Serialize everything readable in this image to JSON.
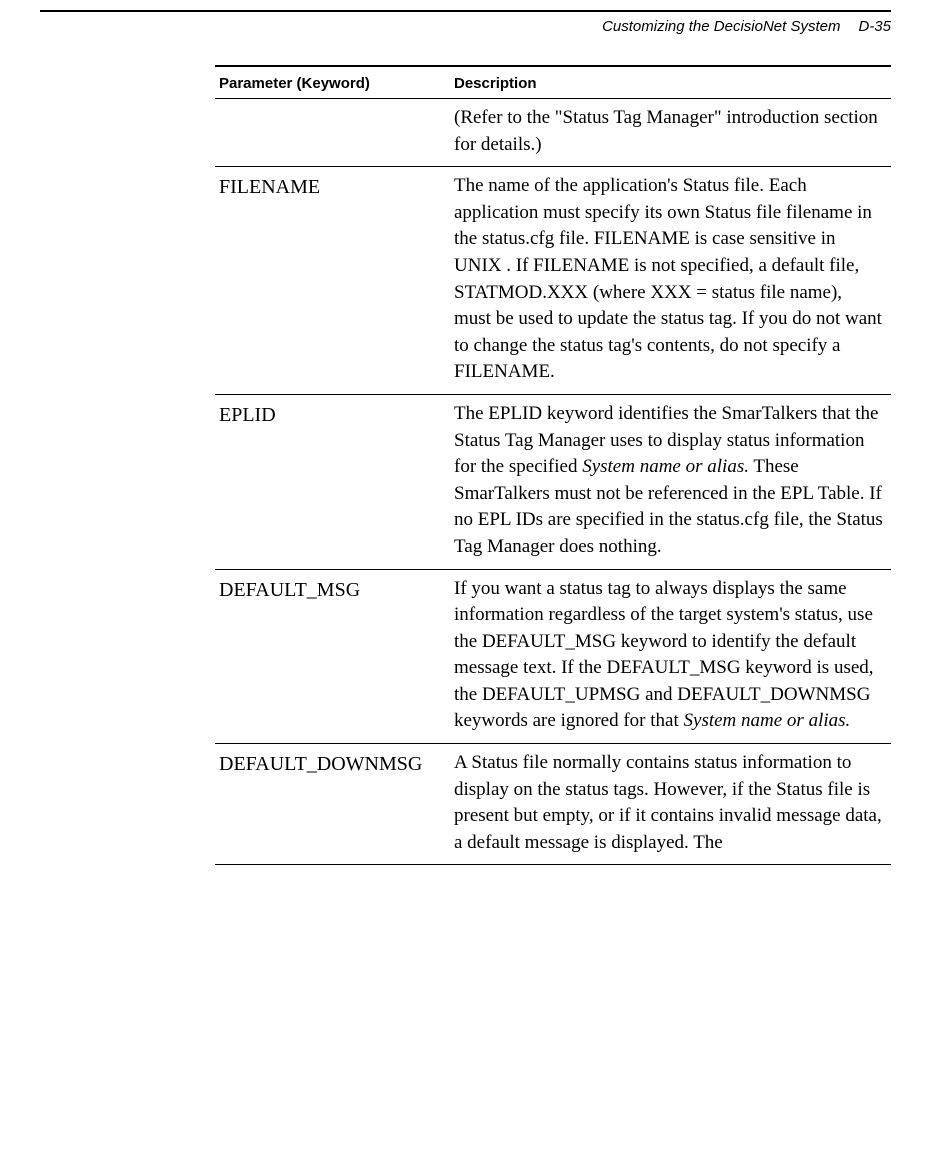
{
  "header": {
    "title": "Customizing the DecisioNet System",
    "page": "D-35"
  },
  "table": {
    "columns": [
      "Parameter (Keyword)",
      "Description"
    ],
    "rows": [
      {
        "param": "",
        "desc_pre": "(Refer to the \"Status Tag Manager\" introduction section for details.)",
        "desc_italic": "",
        "desc_post": ""
      },
      {
        "param": "FILENAME",
        "desc_pre": "The name of the application's Status file. Each application must specify its own Status file filename in the status.cfg file. FILENAME is case sensitive in UNIX . If FILENAME is not specified, a default file, STATMOD.XXX (where XXX = status file name), must be used to update the status tag. If you do not want to change the status tag's contents, do not specify a FILENAME.",
        "desc_italic": "",
        "desc_post": ""
      },
      {
        "param": "EPLID",
        "desc_pre": "The EPLID keyword identifies the SmarTalkers that the Status Tag Manager uses to display status information for the specified ",
        "desc_italic": "System name or alias.",
        "desc_post": " These SmarTalkers must not be referenced in the EPL Table. If no EPL IDs are specified in the status.cfg file, the Status Tag Manager does nothing."
      },
      {
        "param": "DEFAULT_MSG",
        "desc_pre": "If you want a status tag to always displays the same information regardless of the target system's status, use the DEFAULT_MSG keyword to identify the default message text. If the DEFAULT_MSG keyword is used, the DEFAULT_UPMSG and DEFAULT_DOWNMSG keywords are ignored for that ",
        "desc_italic": "System name or alias.",
        "desc_post": ""
      },
      {
        "param": "DEFAULT_DOWNMSG",
        "desc_pre": "A Status file normally contains status information to display on the status tags. However, if the Status file is present but empty, or if it contains invalid message data, a default message is displayed. The",
        "desc_italic": "",
        "desc_post": ""
      }
    ]
  }
}
